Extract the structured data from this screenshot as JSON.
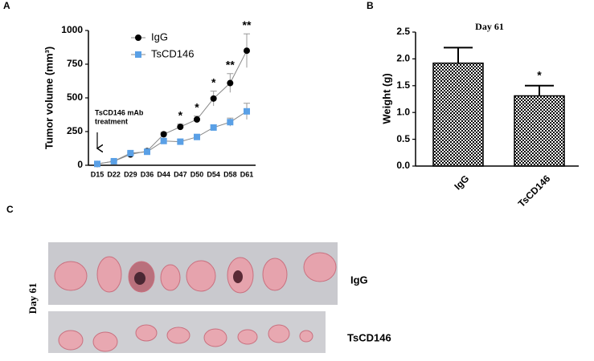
{
  "chart_data": [
    {
      "type": "line",
      "panel_label": "A",
      "y_label": "Tumor volume (mm³)",
      "categories": [
        "D15",
        "D22",
        "D29",
        "D36",
        "D44",
        "D47",
        "D50",
        "D54",
        "D58",
        "D61"
      ],
      "series": [
        {
          "name": "IgG",
          "color": "#000000",
          "marker": "circle",
          "values": [
            10,
            30,
            80,
            105,
            230,
            285,
            340,
            495,
            610,
            850
          ],
          "errors": [
            5,
            8,
            10,
            12,
            15,
            20,
            25,
            55,
            70,
            125
          ]
        },
        {
          "name": "TsCD146",
          "color": "#5aa0e6",
          "marker": "square",
          "values": [
            10,
            30,
            90,
            100,
            180,
            175,
            210,
            280,
            320,
            400
          ],
          "errors": [
            5,
            8,
            10,
            10,
            12,
            15,
            18,
            20,
            30,
            60
          ]
        }
      ],
      "significance": [
        null,
        null,
        null,
        null,
        null,
        "*",
        "*",
        "*",
        "**",
        "**"
      ],
      "annotation_lines": [
        "TsCD146 mAb",
        "treatment"
      ],
      "ylim": [
        0,
        1000
      ],
      "yticks": [
        0,
        250,
        500,
        750,
        1000
      ]
    },
    {
      "type": "bar",
      "panel_label": "B",
      "title": "Day 61",
      "y_label": "Weight (g)",
      "categories": [
        "IgG",
        "TsCD146"
      ],
      "values": [
        1.92,
        1.31
      ],
      "errors": [
        0.29,
        0.19
      ],
      "significance": [
        null,
        "*"
      ],
      "ylim": [
        0,
        2.5
      ],
      "yticks": [
        {
          "value": 0,
          "label": "0.0"
        },
        {
          "value": 0.5,
          "label": "0.5"
        },
        {
          "value": 1,
          "label": "1.0"
        },
        {
          "value": 1.5,
          "label": "1.5"
        },
        {
          "value": 2,
          "label": "2.0"
        },
        {
          "value": 2.5,
          "label": "2.5"
        }
      ]
    }
  ],
  "photo": {
    "panel_label": "C",
    "side_label": "Day 61",
    "rows": [
      "IgG",
      "TsCD146"
    ]
  }
}
